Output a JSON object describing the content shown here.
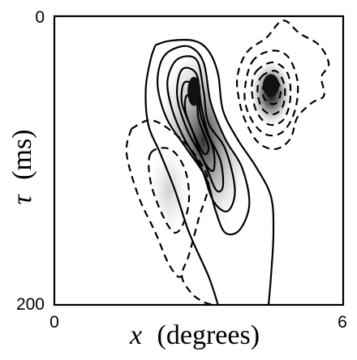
{
  "chart_data": {
    "type": "contour",
    "title": "",
    "xlabel": {
      "symbol": "x",
      "unit": "(degrees)"
    },
    "ylabel": {
      "symbol": "τ",
      "unit": "(ms)"
    },
    "xlim": [
      0,
      6
    ],
    "ylim": [
      0,
      200
    ],
    "y_inverted": true,
    "x_ticks": [
      "0",
      "6"
    ],
    "y_ticks": [
      "0",
      "200"
    ],
    "grid": false,
    "legend": "none",
    "line_styles": {
      "positive": "solid",
      "negative": "dashed"
    },
    "peaks": [
      {
        "sign": "positive",
        "x": 2.9,
        "y": 52
      },
      {
        "sign": "negative",
        "x": 4.5,
        "y": 48
      },
      {
        "sign": "negative",
        "x": 2.5,
        "y": 115
      }
    ],
    "contours": [
      {
        "sign": "positive",
        "points": [
          [
            2.1,
            20
          ],
          [
            2.4,
            17
          ],
          [
            2.9,
            17
          ],
          [
            3.2,
            24
          ],
          [
            3.4,
            40
          ],
          [
            3.5,
            65
          ],
          [
            3.8,
            85
          ],
          [
            4.2,
            105
          ],
          [
            4.5,
            125
          ],
          [
            4.55,
            150
          ],
          [
            4.5,
            180
          ],
          [
            4.45,
            200
          ]
        ]
      },
      {
        "sign": "positive",
        "points": [
          [
            3.4,
            200
          ],
          [
            3.2,
            180
          ],
          [
            2.8,
            150
          ],
          [
            2.5,
            120
          ],
          [
            2.2,
            95
          ],
          [
            1.95,
            75
          ],
          [
            1.9,
            50
          ],
          [
            2.0,
            30
          ],
          [
            2.1,
            20
          ]
        ]
      },
      {
        "sign": "positive",
        "points": [
          [
            2.4,
            24
          ],
          [
            2.8,
            21
          ],
          [
            3.1,
            32
          ],
          [
            3.25,
            60
          ],
          [
            3.55,
            85
          ],
          [
            3.9,
            105
          ],
          [
            4.05,
            130
          ],
          [
            3.85,
            148
          ],
          [
            3.55,
            150
          ],
          [
            3.35,
            135
          ],
          [
            3.15,
            112
          ],
          [
            2.75,
            92
          ],
          [
            2.35,
            72
          ],
          [
            2.15,
            50
          ],
          [
            2.2,
            33
          ],
          [
            2.4,
            24
          ]
        ]
      },
      {
        "sign": "positive",
        "points": [
          [
            2.55,
            30
          ],
          [
            2.95,
            30
          ],
          [
            3.1,
            52
          ],
          [
            3.2,
            74
          ],
          [
            3.55,
            92
          ],
          [
            3.75,
            120
          ],
          [
            3.6,
            135
          ],
          [
            3.3,
            128
          ],
          [
            3.05,
            105
          ],
          [
            2.7,
            85
          ],
          [
            2.45,
            65
          ],
          [
            2.35,
            45
          ],
          [
            2.55,
            30
          ]
        ]
      },
      {
        "sign": "positive",
        "points": [
          [
            2.65,
            37
          ],
          [
            2.95,
            40
          ],
          [
            3.05,
            62
          ],
          [
            3.2,
            82
          ],
          [
            3.45,
            100
          ],
          [
            3.5,
            118
          ],
          [
            3.35,
            120
          ],
          [
            3.1,
            100
          ],
          [
            2.75,
            78
          ],
          [
            2.55,
            55
          ],
          [
            2.65,
            37
          ]
        ]
      },
      {
        "sign": "positive",
        "points": [
          [
            2.7,
            46
          ],
          [
            2.95,
            50
          ],
          [
            3.05,
            70
          ],
          [
            3.3,
            92
          ],
          [
            3.3,
            107
          ],
          [
            3.1,
            100
          ],
          [
            2.85,
            78
          ],
          [
            2.65,
            60
          ],
          [
            2.7,
            46
          ]
        ]
      },
      {
        "sign": "positive",
        "points": [
          [
            2.75,
            55
          ],
          [
            2.95,
            58
          ],
          [
            3.0,
            72
          ],
          [
            3.2,
            90
          ],
          [
            3.1,
            95
          ],
          [
            2.85,
            78
          ],
          [
            2.72,
            65
          ],
          [
            2.75,
            55
          ]
        ]
      },
      {
        "sign": "negative",
        "points": [
          [
            4.0,
            25
          ],
          [
            4.4,
            15
          ],
          [
            4.75,
            3
          ],
          [
            5.1,
            12
          ],
          [
            5.5,
            20
          ],
          [
            5.7,
            33
          ],
          [
            5.55,
            42
          ],
          [
            5.6,
            55
          ],
          [
            5.35,
            60
          ],
          [
            5.05,
            70
          ],
          [
            4.9,
            85
          ],
          [
            4.6,
            92
          ],
          [
            4.25,
            88
          ],
          [
            4.0,
            75
          ],
          [
            3.85,
            60
          ],
          [
            3.8,
            42
          ],
          [
            4.0,
            25
          ]
        ]
      },
      {
        "sign": "negative",
        "points": [
          [
            4.1,
            32
          ],
          [
            4.5,
            24
          ],
          [
            4.85,
            28
          ],
          [
            5.05,
            45
          ],
          [
            5.0,
            65
          ],
          [
            4.75,
            80
          ],
          [
            4.4,
            82
          ],
          [
            4.1,
            72
          ],
          [
            3.95,
            55
          ],
          [
            4.1,
            32
          ]
        ]
      },
      {
        "sign": "negative",
        "points": [
          [
            4.2,
            38
          ],
          [
            4.55,
            32
          ],
          [
            4.85,
            40
          ],
          [
            4.9,
            58
          ],
          [
            4.75,
            72
          ],
          [
            4.45,
            75
          ],
          [
            4.2,
            66
          ],
          [
            4.1,
            50
          ],
          [
            4.2,
            38
          ]
        ]
      },
      {
        "sign": "negative",
        "points": [
          [
            4.3,
            42
          ],
          [
            4.6,
            38
          ],
          [
            4.78,
            48
          ],
          [
            4.75,
            62
          ],
          [
            4.55,
            68
          ],
          [
            4.32,
            64
          ],
          [
            4.22,
            52
          ],
          [
            4.3,
            42
          ]
        ]
      },
      {
        "sign": "negative",
        "points": [
          [
            4.38,
            46
          ],
          [
            4.6,
            44
          ],
          [
            4.7,
            52
          ],
          [
            4.62,
            60
          ],
          [
            4.44,
            60
          ],
          [
            4.33,
            54
          ],
          [
            4.38,
            46
          ]
        ]
      },
      {
        "sign": "negative",
        "points": [
          [
            1.6,
            78
          ],
          [
            2.0,
            72
          ],
          [
            2.45,
            80
          ],
          [
            2.9,
            95
          ],
          [
            3.2,
            115
          ],
          [
            3.0,
            140
          ],
          [
            2.8,
            165
          ],
          [
            2.65,
            180
          ],
          [
            2.85,
            192
          ],
          [
            3.1,
            198
          ],
          [
            3.3,
            200
          ]
        ]
      },
      {
        "sign": "negative",
        "points": [
          [
            1.6,
            78
          ],
          [
            1.5,
            95
          ],
          [
            1.75,
            125
          ],
          [
            2.1,
            150
          ],
          [
            2.35,
            170
          ],
          [
            2.55,
            180
          ],
          [
            2.65,
            180
          ]
        ]
      },
      {
        "sign": "negative",
        "points": [
          [
            2.0,
            95
          ],
          [
            2.4,
            92
          ],
          [
            2.7,
            105
          ],
          [
            2.8,
            125
          ],
          [
            2.7,
            142
          ],
          [
            2.5,
            150
          ],
          [
            2.25,
            138
          ],
          [
            2.0,
            115
          ],
          [
            2.0,
            95
          ]
        ]
      }
    ]
  }
}
